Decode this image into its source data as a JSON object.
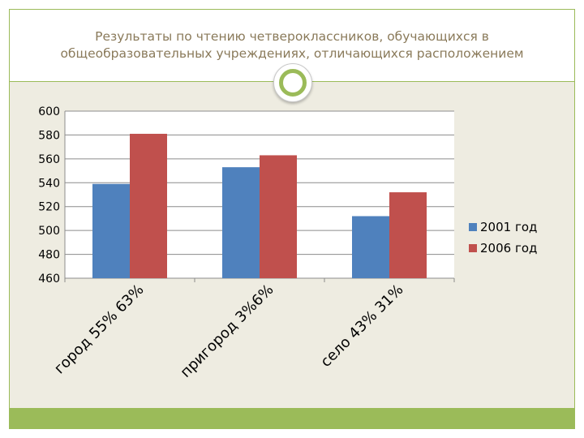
{
  "slide": {
    "title_line1": "Результаты по чтению четвероклассников, обучающихся в",
    "title_line2": "общеобразовательных учреждениях, отличающихся расположением"
  },
  "colors": {
    "accent_green": "#9bbb59",
    "background": "#eeece1",
    "title_text": "#8a7a5a",
    "series_2001": "#4f81bd",
    "series_2006": "#c0504d"
  },
  "chart_data": {
    "type": "bar",
    "title": "",
    "xlabel": "",
    "ylabel": "",
    "categories": [
      "город 55% 63%",
      "пригород 3%6%",
      "село 43% 31%"
    ],
    "series": [
      {
        "name": "2001 год",
        "values": [
          539,
          553,
          512
        ]
      },
      {
        "name": "2006 год",
        "values": [
          581,
          563,
          532
        ]
      }
    ],
    "ylim": [
      460,
      600
    ],
    "yticks": [
      460,
      480,
      500,
      520,
      540,
      560,
      580,
      600
    ],
    "grid": true,
    "legend": "right"
  }
}
